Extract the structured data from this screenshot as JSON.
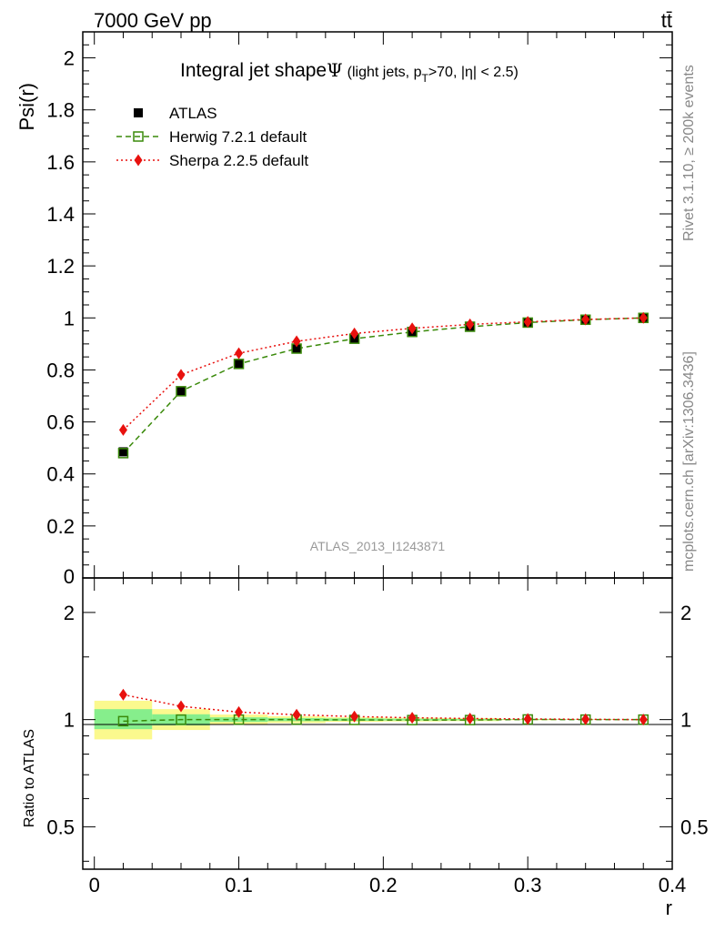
{
  "header": {
    "energy": "7000 GeV pp",
    "process": "tt̄"
  },
  "side": {
    "rivet": "Rivet 3.1.10, ≥ 200k events",
    "source": "mcplots.cern.ch [arXiv:1306.3436]"
  },
  "chart_data": [
    {
      "type": "line",
      "title_main": "Integral jet shape",
      "title_symbol": "Ψ",
      "title_sub_a": "(light jets, p",
      "title_sub_b": "T",
      "title_sub_c": ">70, |η| < 2.5)",
      "analysis_tag": "ATLAS_2013_I1243871",
      "ylabel": "Psi(r)",
      "xlabel": "r",
      "xlim": [
        -0.008,
        0.4
      ],
      "ylim": [
        0,
        2.1
      ],
      "xticks": [
        0,
        0.1,
        0.2,
        0.3,
        0.4
      ],
      "xtick_labels": [
        "0",
        "0.1",
        "0.2",
        "0.3",
        "0.4"
      ],
      "yticks": [
        0.2,
        0.4,
        0.6,
        0.8,
        1,
        1.2,
        1.4,
        1.6,
        1.8,
        2
      ],
      "ytick_labels": [
        "0.2",
        "0.4",
        "0.6",
        "0.8",
        "1",
        "1.2",
        "1.4",
        "1.6",
        "1.8",
        "2"
      ],
      "ytick_zero_label": "0",
      "legend_position": "top-left",
      "x": [
        0.02,
        0.06,
        0.1,
        0.14,
        0.18,
        0.22,
        0.26,
        0.3,
        0.34,
        0.38
      ],
      "series": [
        {
          "name": "ATLAS",
          "values": [
            0.485,
            0.718,
            0.822,
            0.882,
            0.922,
            0.948,
            0.968,
            0.981,
            0.992,
            1.0
          ],
          "color": "#000000",
          "marker": "filled-square",
          "style": "none"
        },
        {
          "name": "Herwig 7.2.1 default",
          "values": [
            0.48,
            0.718,
            0.823,
            0.882,
            0.92,
            0.946,
            0.966,
            0.982,
            0.993,
            1.0
          ],
          "color": "#3a8a0a",
          "marker": "open-square",
          "style": "dashed"
        },
        {
          "name": "Sherpa 2.2.5 default",
          "values": [
            0.569,
            0.781,
            0.864,
            0.91,
            0.94,
            0.96,
            0.975,
            0.985,
            0.994,
            1.0
          ],
          "color": "#e8110e",
          "marker": "diamond",
          "style": "dotted"
        }
      ]
    },
    {
      "type": "line",
      "ylabel": "Ratio to ATLAS",
      "xlabel": "r",
      "xlim": [
        -0.008,
        0.4
      ],
      "ylim": [
        0.38,
        2.5
      ],
      "log_y": true,
      "yticks": [
        0.5,
        1,
        2
      ],
      "ytick_labels": [
        "0.5",
        "1",
        "2"
      ],
      "x": [
        0.02,
        0.06,
        0.1,
        0.14,
        0.18,
        0.22,
        0.26,
        0.3,
        0.34,
        0.38
      ],
      "bin_edges": [
        0,
        0.04,
        0.08,
        0.12,
        0.16,
        0.2,
        0.24,
        0.28,
        0.32,
        0.36,
        0.4
      ],
      "band_inner": [
        [
          0.94,
          1.07
        ],
        [
          0.963,
          1.035
        ],
        [
          0.985,
          1.015
        ],
        [
          0.99,
          1.01
        ],
        [
          0.992,
          1.008
        ],
        [
          0.994,
          1.006
        ],
        [
          0.995,
          1.005
        ],
        [
          0.998,
          1.002
        ],
        [
          0.999,
          1.001
        ],
        [
          1.0,
          1.0
        ]
      ],
      "band_outer": [
        [
          0.88,
          1.13
        ],
        [
          0.935,
          1.07
        ],
        [
          0.967,
          1.033
        ],
        [
          0.978,
          1.022
        ],
        [
          0.985,
          1.015
        ],
        [
          0.988,
          1.012
        ],
        [
          0.99,
          1.01
        ],
        [
          0.996,
          1.004
        ],
        [
          0.998,
          1.002
        ],
        [
          1.0,
          1.0
        ]
      ],
      "series": [
        {
          "name": "Herwig 7.2.1 default",
          "values": [
            0.99,
            1.0,
            1.0,
            1.0,
            0.998,
            0.997,
            0.997,
            1.001,
            1.0,
            1.0
          ],
          "color": "#3a8a0a",
          "marker": "open-square",
          "style": "dashed"
        },
        {
          "name": "Sherpa 2.2.5 default",
          "values": [
            1.175,
            1.09,
            1.05,
            1.032,
            1.02,
            1.012,
            1.007,
            1.004,
            1.002,
            1.0
          ],
          "color": "#e8110e",
          "marker": "diamond",
          "style": "dotted"
        }
      ]
    }
  ],
  "colors": {
    "band_inner": "#86ee8c",
    "band_outer": "#fbf98e"
  }
}
